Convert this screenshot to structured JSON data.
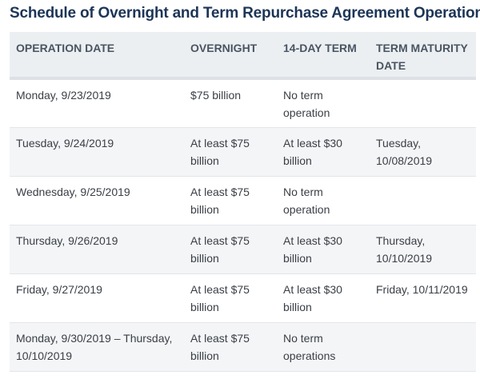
{
  "title": "Schedule of Overnight and Term Repurchase Agreement Operations",
  "columns": [
    "OPERATION DATE",
    "OVERNIGHT",
    "14-DAY TERM",
    "TERM MATURITY DATE"
  ],
  "rows": [
    {
      "operation_date": "Monday, 9/23/2019",
      "overnight": "$75 billion",
      "term_14_day": "No term operation",
      "term_maturity_date": ""
    },
    {
      "operation_date": "Tuesday, 9/24/2019",
      "overnight": "At least $75 billion",
      "term_14_day": "At least $30 billion",
      "term_maturity_date": "Tuesday, 10/08/2019"
    },
    {
      "operation_date": "Wednesday, 9/25/2019",
      "overnight": "At least $75 billion",
      "term_14_day": "No term operation",
      "term_maturity_date": ""
    },
    {
      "operation_date": "Thursday, 9/26/2019",
      "overnight": "At least $75 billion",
      "term_14_day": "At least $30 billion",
      "term_maturity_date": "Thursday, 10/10/2019"
    },
    {
      "operation_date": "Friday, 9/27/2019",
      "overnight": "At least $75 billion",
      "term_14_day": "At least $30 billion",
      "term_maturity_date": "Friday, 10/11/2019"
    },
    {
      "operation_date": "Monday, 9/30/2019 – Thursday, 10/10/2019",
      "overnight": "At least $75 billion",
      "term_14_day": "No term operations",
      "term_maturity_date": ""
    }
  ]
}
